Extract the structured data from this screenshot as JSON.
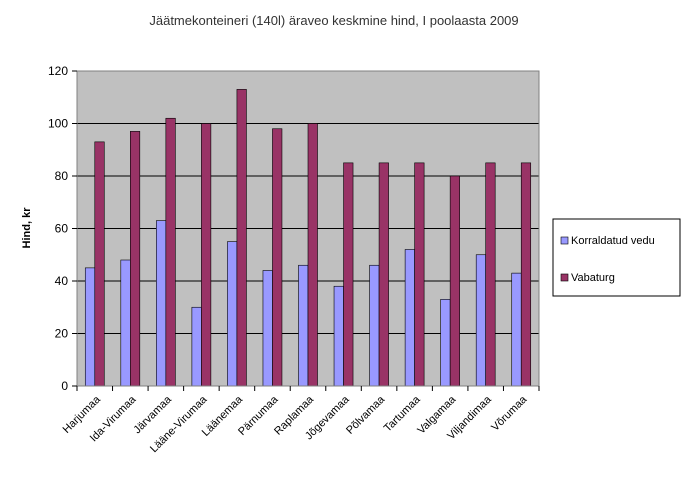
{
  "chart_data": {
    "type": "bar",
    "title": "Jäätmekonteineri (140l) äraveo keskmine hind, I poolaasta 2009",
    "xlabel": "",
    "ylabel": "Hind, kr",
    "ylim": [
      0,
      120
    ],
    "yticks": [
      0,
      20,
      40,
      60,
      80,
      100,
      120
    ],
    "grid": true,
    "legend_position": "right",
    "categories": [
      "Harjumaa",
      "Ida-Virumaa",
      "Järvamaa",
      "Lääne-Virumaa",
      "Läänemaa",
      "Pärnumaa",
      "Raplamaa",
      "Jõgevamaa",
      "Põlvamaa",
      "Tartumaa",
      "Valgamaa",
      "Viljandimaa",
      "Võrumaa"
    ],
    "series": [
      {
        "name": "Korraldatud vedu",
        "color": "#9999ff",
        "values": [
          45,
          48,
          63,
          30,
          55,
          44,
          46,
          38,
          46,
          52,
          33,
          50,
          43
        ]
      },
      {
        "name": "Vabaturg",
        "color": "#993366",
        "values": [
          93,
          97,
          102,
          100,
          113,
          98,
          100,
          85,
          85,
          85,
          80,
          85,
          85
        ]
      }
    ],
    "plot_background": "#c0c0c0"
  }
}
